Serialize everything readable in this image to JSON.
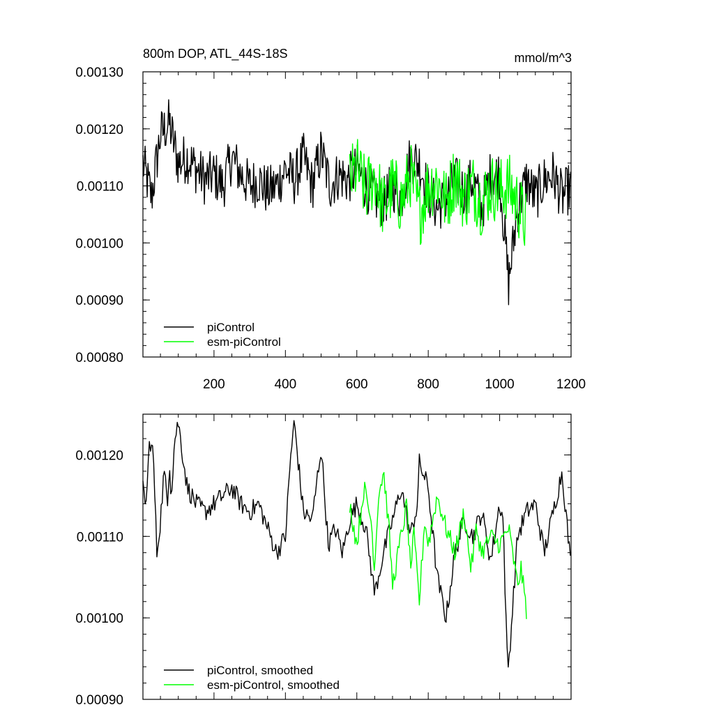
{
  "chart_data": [
    {
      "type": "line",
      "title": "800m DOP, ATL_44S-18S",
      "units": "mmol/m^3",
      "xlim": [
        1,
        1200
      ],
      "ylim": [
        0.0008,
        0.0013
      ],
      "x_ticks": [
        200,
        400,
        600,
        800,
        1000,
        1200
      ],
      "x_tick_labels": [
        "200",
        "400",
        "600",
        "800",
        "1000",
        "1200"
      ],
      "y_ticks": [
        0.0008,
        0.0009,
        0.001,
        0.0011,
        0.0012,
        0.0013
      ],
      "y_tick_labels": [
        "0.00080",
        "0.00090",
        "0.00100",
        "0.00110",
        "0.00120",
        "0.00130"
      ],
      "legend_position": "bottom-left",
      "series": [
        {
          "name": "piControl",
          "color": "#000000",
          "x": [
            1,
            25,
            50,
            75,
            100,
            125,
            150,
            175,
            200,
            225,
            250,
            275,
            300,
            325,
            350,
            375,
            400,
            425,
            450,
            475,
            500,
            525,
            550,
            575,
            600,
            625,
            650,
            675,
            700,
            725,
            750,
            775,
            800,
            825,
            850,
            875,
            900,
            925,
            950,
            975,
            1000,
            1025,
            1050,
            1075,
            1100,
            1125,
            1150,
            1175,
            1200
          ],
          "values": [
            0.00114,
            0.00108,
            0.00119,
            0.00121,
            0.00114,
            0.00115,
            0.00113,
            0.00111,
            0.00112,
            0.0011,
            0.00115,
            0.00112,
            0.0011,
            0.00111,
            0.00109,
            0.0011,
            0.00113,
            0.00111,
            0.00115,
            0.0011,
            0.00116,
            0.0011,
            0.00112,
            0.00111,
            0.00113,
            0.0011,
            0.00108,
            0.00107,
            0.0011,
            0.00108,
            0.00115,
            0.00114,
            0.00109,
            0.00106,
            0.00108,
            0.00111,
            0.00109,
            0.00111,
            0.00106,
            0.00112,
            0.00112,
            0.00093,
            0.00106,
            0.00111,
            0.00108,
            0.00111,
            0.00112,
            0.00108,
            0.0011
          ]
        },
        {
          "name": "esm-piControl",
          "color": "#00ff00",
          "x": [
            580,
            600,
            625,
            650,
            675,
            700,
            725,
            750,
            775,
            800,
            825,
            850,
            875,
            900,
            925,
            950,
            975,
            1000,
            1025,
            1050,
            1075
          ],
          "values": [
            0.00111,
            0.00113,
            0.00109,
            0.00112,
            0.00106,
            0.0011,
            0.00107,
            0.00112,
            0.00105,
            0.0011,
            0.00111,
            0.00107,
            0.00112,
            0.00108,
            0.0011,
            0.00107,
            0.0011,
            0.00109,
            0.0011,
            0.00107,
            0.00103
          ]
        }
      ]
    },
    {
      "type": "line",
      "xlim": [
        1,
        1200
      ],
      "ylim": [
        0.0009,
        0.00125
      ],
      "y_ticks": [
        0.0009,
        0.001,
        0.0011,
        0.0012
      ],
      "y_tick_labels": [
        "0.00090",
        "0.00100",
        "0.00110",
        "0.00120"
      ],
      "legend_position": "bottom-left",
      "series": [
        {
          "name": "piControl, smoothed",
          "color": "#000000",
          "x": [
            1,
            10,
            20,
            30,
            40,
            50,
            60,
            70,
            75,
            80,
            90,
            100,
            125,
            150,
            175,
            200,
            225,
            250,
            275,
            300,
            325,
            350,
            375,
            400,
            415,
            425,
            450,
            475,
            500,
            520,
            540,
            560,
            580,
            600,
            625,
            650,
            675,
            700,
            725,
            750,
            770,
            775,
            800,
            825,
            850,
            875,
            900,
            925,
            950,
            975,
            1000,
            1010,
            1020,
            1025,
            1050,
            1075,
            1100,
            1125,
            1150,
            1175,
            1200
          ],
          "values": [
            0.00116,
            0.00114,
            0.00122,
            0.0012,
            0.00108,
            0.00112,
            0.00118,
            0.00114,
            0.0012,
            0.00115,
            0.00122,
            0.00124,
            0.00116,
            0.00114,
            0.00113,
            0.00114,
            0.00115,
            0.00116,
            0.00114,
            0.00113,
            0.00114,
            0.00111,
            0.00108,
            0.0011,
            0.0012,
            0.00124,
            0.00113,
            0.00112,
            0.00121,
            0.00109,
            0.00111,
            0.00108,
            0.00112,
            0.00114,
            0.00111,
            0.00103,
            0.00108,
            0.00112,
            0.00116,
            0.0011,
            0.00114,
            0.00119,
            0.00116,
            0.00105,
            0.001,
            0.00108,
            0.00112,
            0.0011,
            0.00113,
            0.00107,
            0.00114,
            0.00112,
            0.00096,
            0.00094,
            0.0011,
            0.00113,
            0.00114,
            0.00108,
            0.00113,
            0.00118,
            0.00106
          ]
        },
        {
          "name": "esm-piControl, smoothed",
          "color": "#00ff00",
          "x": [
            580,
            600,
            620,
            640,
            650,
            660,
            675,
            690,
            700,
            720,
            740,
            750,
            760,
            775,
            790,
            800,
            825,
            850,
            875,
            900,
            920,
            935,
            950,
            975,
            1000,
            1025,
            1050,
            1060,
            1075
          ],
          "values": [
            0.00114,
            0.00109,
            0.00116,
            0.00112,
            0.00106,
            0.00115,
            0.00118,
            0.00111,
            0.00104,
            0.00109,
            0.00114,
            0.00106,
            0.0011,
            0.00102,
            0.00112,
            0.00109,
            0.00115,
            0.00111,
            0.00108,
            0.00113,
            0.00106,
            0.00111,
            0.00108,
            0.0011,
            0.00109,
            0.00111,
            0.00104,
            0.00106,
            0.00101
          ]
        }
      ]
    }
  ],
  "legend": {
    "top": [
      {
        "label": "piControl",
        "color": "#000000"
      },
      {
        "label": "esm-piControl",
        "color": "#00ff00"
      }
    ],
    "bottom": [
      {
        "label": "piControl, smoothed",
        "color": "#000000"
      },
      {
        "label": "esm-piControl, smoothed",
        "color": "#00ff00"
      }
    ]
  }
}
